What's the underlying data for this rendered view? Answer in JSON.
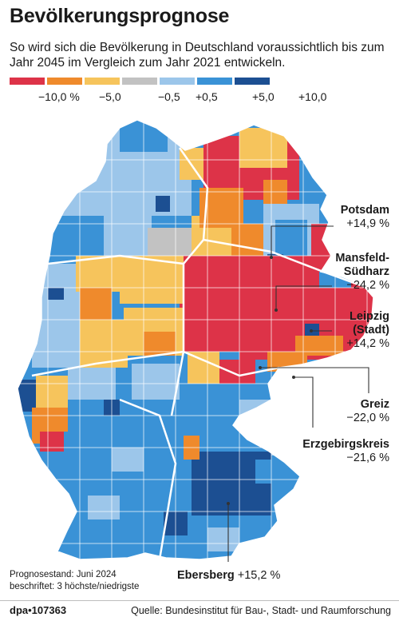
{
  "title": "Bevölkerungsprognose",
  "subtitle": "So wird sich die Bevölkerung in Deutschland voraussichtlich bis zum Jahr 2045 im Vergleich zum Jahr 2021 entwickeln.",
  "legend": {
    "colors": [
      "#dd3348",
      "#ef8a2c",
      "#f6c45c",
      "#c2c2c2",
      "#9cc6ea",
      "#3a92d6",
      "#1c4f92"
    ],
    "labels": [
      "−10,0 %",
      "−5,0",
      "−0,5",
      "+0,5",
      "+5,0",
      "+10,0"
    ]
  },
  "callouts": [
    {
      "name": "Potsdam",
      "value": "+14,9 %"
    },
    {
      "name_line1": "Mansfeld-",
      "name_line2": "Südharz",
      "value": "−24,2 %"
    },
    {
      "name_line1": "Leipzig",
      "name_line2": "(Stadt)",
      "value": "+14,2 %"
    },
    {
      "name": "Greiz",
      "value": "−22,0 %"
    },
    {
      "name": "Erzgebirgskreis",
      "value": "−21,6 %"
    },
    {
      "name": "Ebersberg",
      "value": "+15,2 %"
    }
  ],
  "footnote": {
    "line1": "Prognosestand: Juni 2024",
    "line2": "beschriftet: 3 höchste/niedrigste"
  },
  "credit": "dpa•107363",
  "source": "Quelle: Bundesinstitut für Bau-, Stadt- und Raumforschung"
}
